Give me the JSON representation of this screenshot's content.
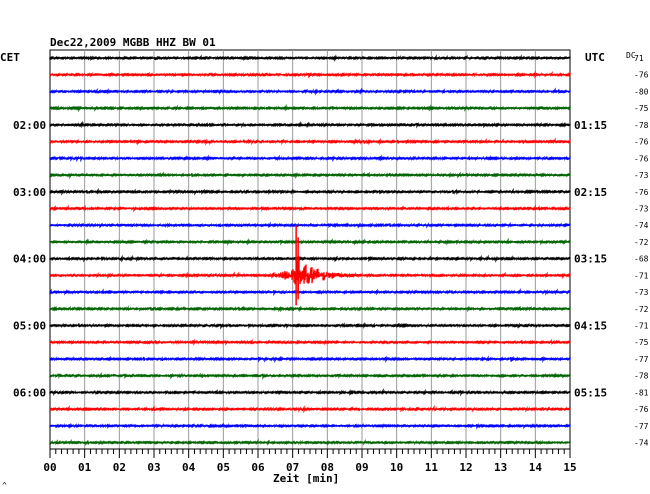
{
  "chart_data": {
    "type": "line",
    "title": "Dec22,2009   MGBB HHZ BW 01",
    "left_axis_label": "CET",
    "right_axis_label": "UTC",
    "dc_label": "DC",
    "xlabel": "Zeit [min]",
    "xlim": [
      0,
      15
    ],
    "x_ticks": [
      "00",
      "01",
      "02",
      "03",
      "04",
      "05",
      "06",
      "07",
      "08",
      "09",
      "10",
      "11",
      "12",
      "13",
      "14",
      "15"
    ],
    "grid": true,
    "row_colors": [
      "#000000",
      "#ff0000",
      "#0000ff",
      "#006400"
    ],
    "left_hour_labels": [
      "02:00",
      "03:00",
      "04:00",
      "05:00",
      "06:00"
    ],
    "right_hour_labels": [
      "01:15",
      "02:15",
      "03:15",
      "04:15",
      "05:15"
    ],
    "dc_values": [
      "71",
      "-76",
      "-80",
      "-75",
      "-78",
      "-76",
      "-76",
      "-73",
      "-76",
      "-73",
      "-74",
      "-72",
      "-68",
      "-71",
      "-73",
      "-72",
      "-71",
      "-75",
      "-77",
      "-78",
      "-81",
      "-76",
      "-77",
      "-74"
    ],
    "event": {
      "row": 13,
      "start_min": 6.3,
      "peak_min": 7.1,
      "end_min": 9.0
    },
    "footer_mark": "^"
  }
}
